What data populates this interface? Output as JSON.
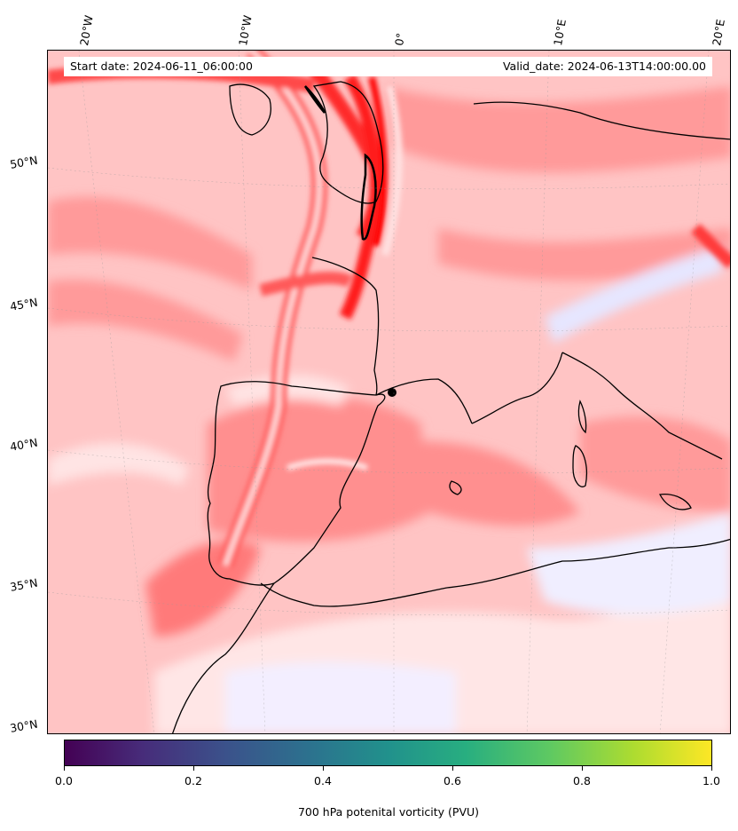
{
  "map": {
    "start_label": "Start date: 2024-06-11_06:00:00",
    "valid_label": "Valid_date: 2024-06-13T14:00:00.00",
    "lon_ticks": [
      "20°W",
      "10°W",
      "0°",
      "10°E",
      "20°E"
    ],
    "lat_ticks": [
      "50°N",
      "45°N",
      "40°N",
      "35°N",
      "30°N"
    ],
    "colors": {
      "pv_high": "#ff0000",
      "pv_mid": "#ff8080",
      "pv_low": "#ffd0d0",
      "pv_near_zero": "#ffe8e8",
      "pv_negative": "#e8e8ff",
      "coastline": "#000000"
    }
  },
  "colorbar": {
    "ticks": [
      "0.0",
      "0.2",
      "0.4",
      "0.6",
      "0.8",
      "1.0"
    ],
    "label": "700 hPa potenital vorticity (PVU)",
    "colormap": "viridis"
  }
}
